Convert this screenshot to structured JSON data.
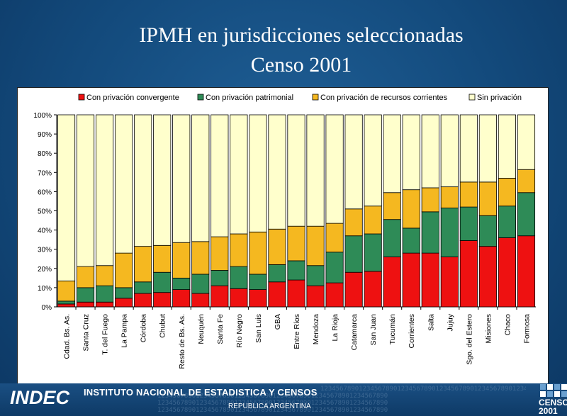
{
  "header": {
    "title_line1": "IPMH en  jurisdicciones seleccionadas",
    "title_line2": "Censo 2001"
  },
  "footer": {
    "logo_text": "INDEC",
    "institute": "INSTITUTO NACIONAL DE ESTADISTICA Y CENSOS",
    "country": "REPUBLICA ARGENTINA",
    "digits": "123456789012345678901234567890123456789012345678901234567890",
    "censo_logo": "CENSO 2001"
  },
  "chart_data": {
    "type": "bar",
    "stacked": "percent",
    "categories": [
      "Cdad. Bs. As.",
      "Santa Cruz",
      "T. del Fuego",
      "La Pampa",
      "Córdoba",
      "Chubut",
      "Resto de Bs. As.",
      "Neuquén",
      "Santa Fe",
      "Río Negro",
      "San Luis",
      "GBA",
      "Entre Ríos",
      "Mendoza",
      "La Rioja",
      "Catamarca",
      "San Juan",
      "Tucumán",
      "Corrientes",
      "Salta",
      "Jujuy",
      "Sgo. del Estero",
      "Misiones",
      "Chaco",
      "Formosa"
    ],
    "series": [
      {
        "name": "Con privación convergente",
        "color": "#ee1111",
        "values": [
          1.5,
          2.5,
          2.5,
          4.5,
          7,
          7.5,
          9,
          7,
          11,
          9.5,
          9,
          13,
          14,
          11,
          12.5,
          18,
          18.5,
          26,
          28,
          28,
          26,
          34.5,
          31.5,
          36,
          37
        ]
      },
      {
        "name": "Con privación patrimonial",
        "color": "#2e8b57",
        "values": [
          1.5,
          7.5,
          8.5,
          5.5,
          6,
          10.5,
          6,
          10,
          8,
          11.5,
          8,
          9,
          10,
          10.5,
          16,
          19,
          19.5,
          19.5,
          13,
          21.5,
          25.5,
          17.5,
          16,
          16.5,
          22.5
        ]
      },
      {
        "name": "Con privación de recursos corrientes",
        "color": "#f5b820",
        "values": [
          10.5,
          11,
          10.5,
          18,
          18.5,
          14,
          18.5,
          17,
          17.5,
          17,
          22,
          18.5,
          18,
          20.5,
          15,
          14,
          14.5,
          14,
          20,
          12.5,
          11,
          13,
          17.5,
          14.5,
          12
        ]
      },
      {
        "name": "Sin privación",
        "color": "#ffffcc",
        "values": [
          86.5,
          79,
          78.5,
          72,
          68.5,
          68,
          66.5,
          66,
          63.5,
          62,
          61,
          59.5,
          58,
          58,
          56.5,
          49,
          47.5,
          40.5,
          39,
          38,
          37.5,
          35,
          35,
          33,
          28.5
        ]
      }
    ],
    "yticks": [
      "0%",
      "10%",
      "20%",
      "30%",
      "40%",
      "50%",
      "60%",
      "70%",
      "80%",
      "90%",
      "100%"
    ],
    "ylim": [
      0,
      100
    ],
    "legend": "top",
    "grid": false
  }
}
